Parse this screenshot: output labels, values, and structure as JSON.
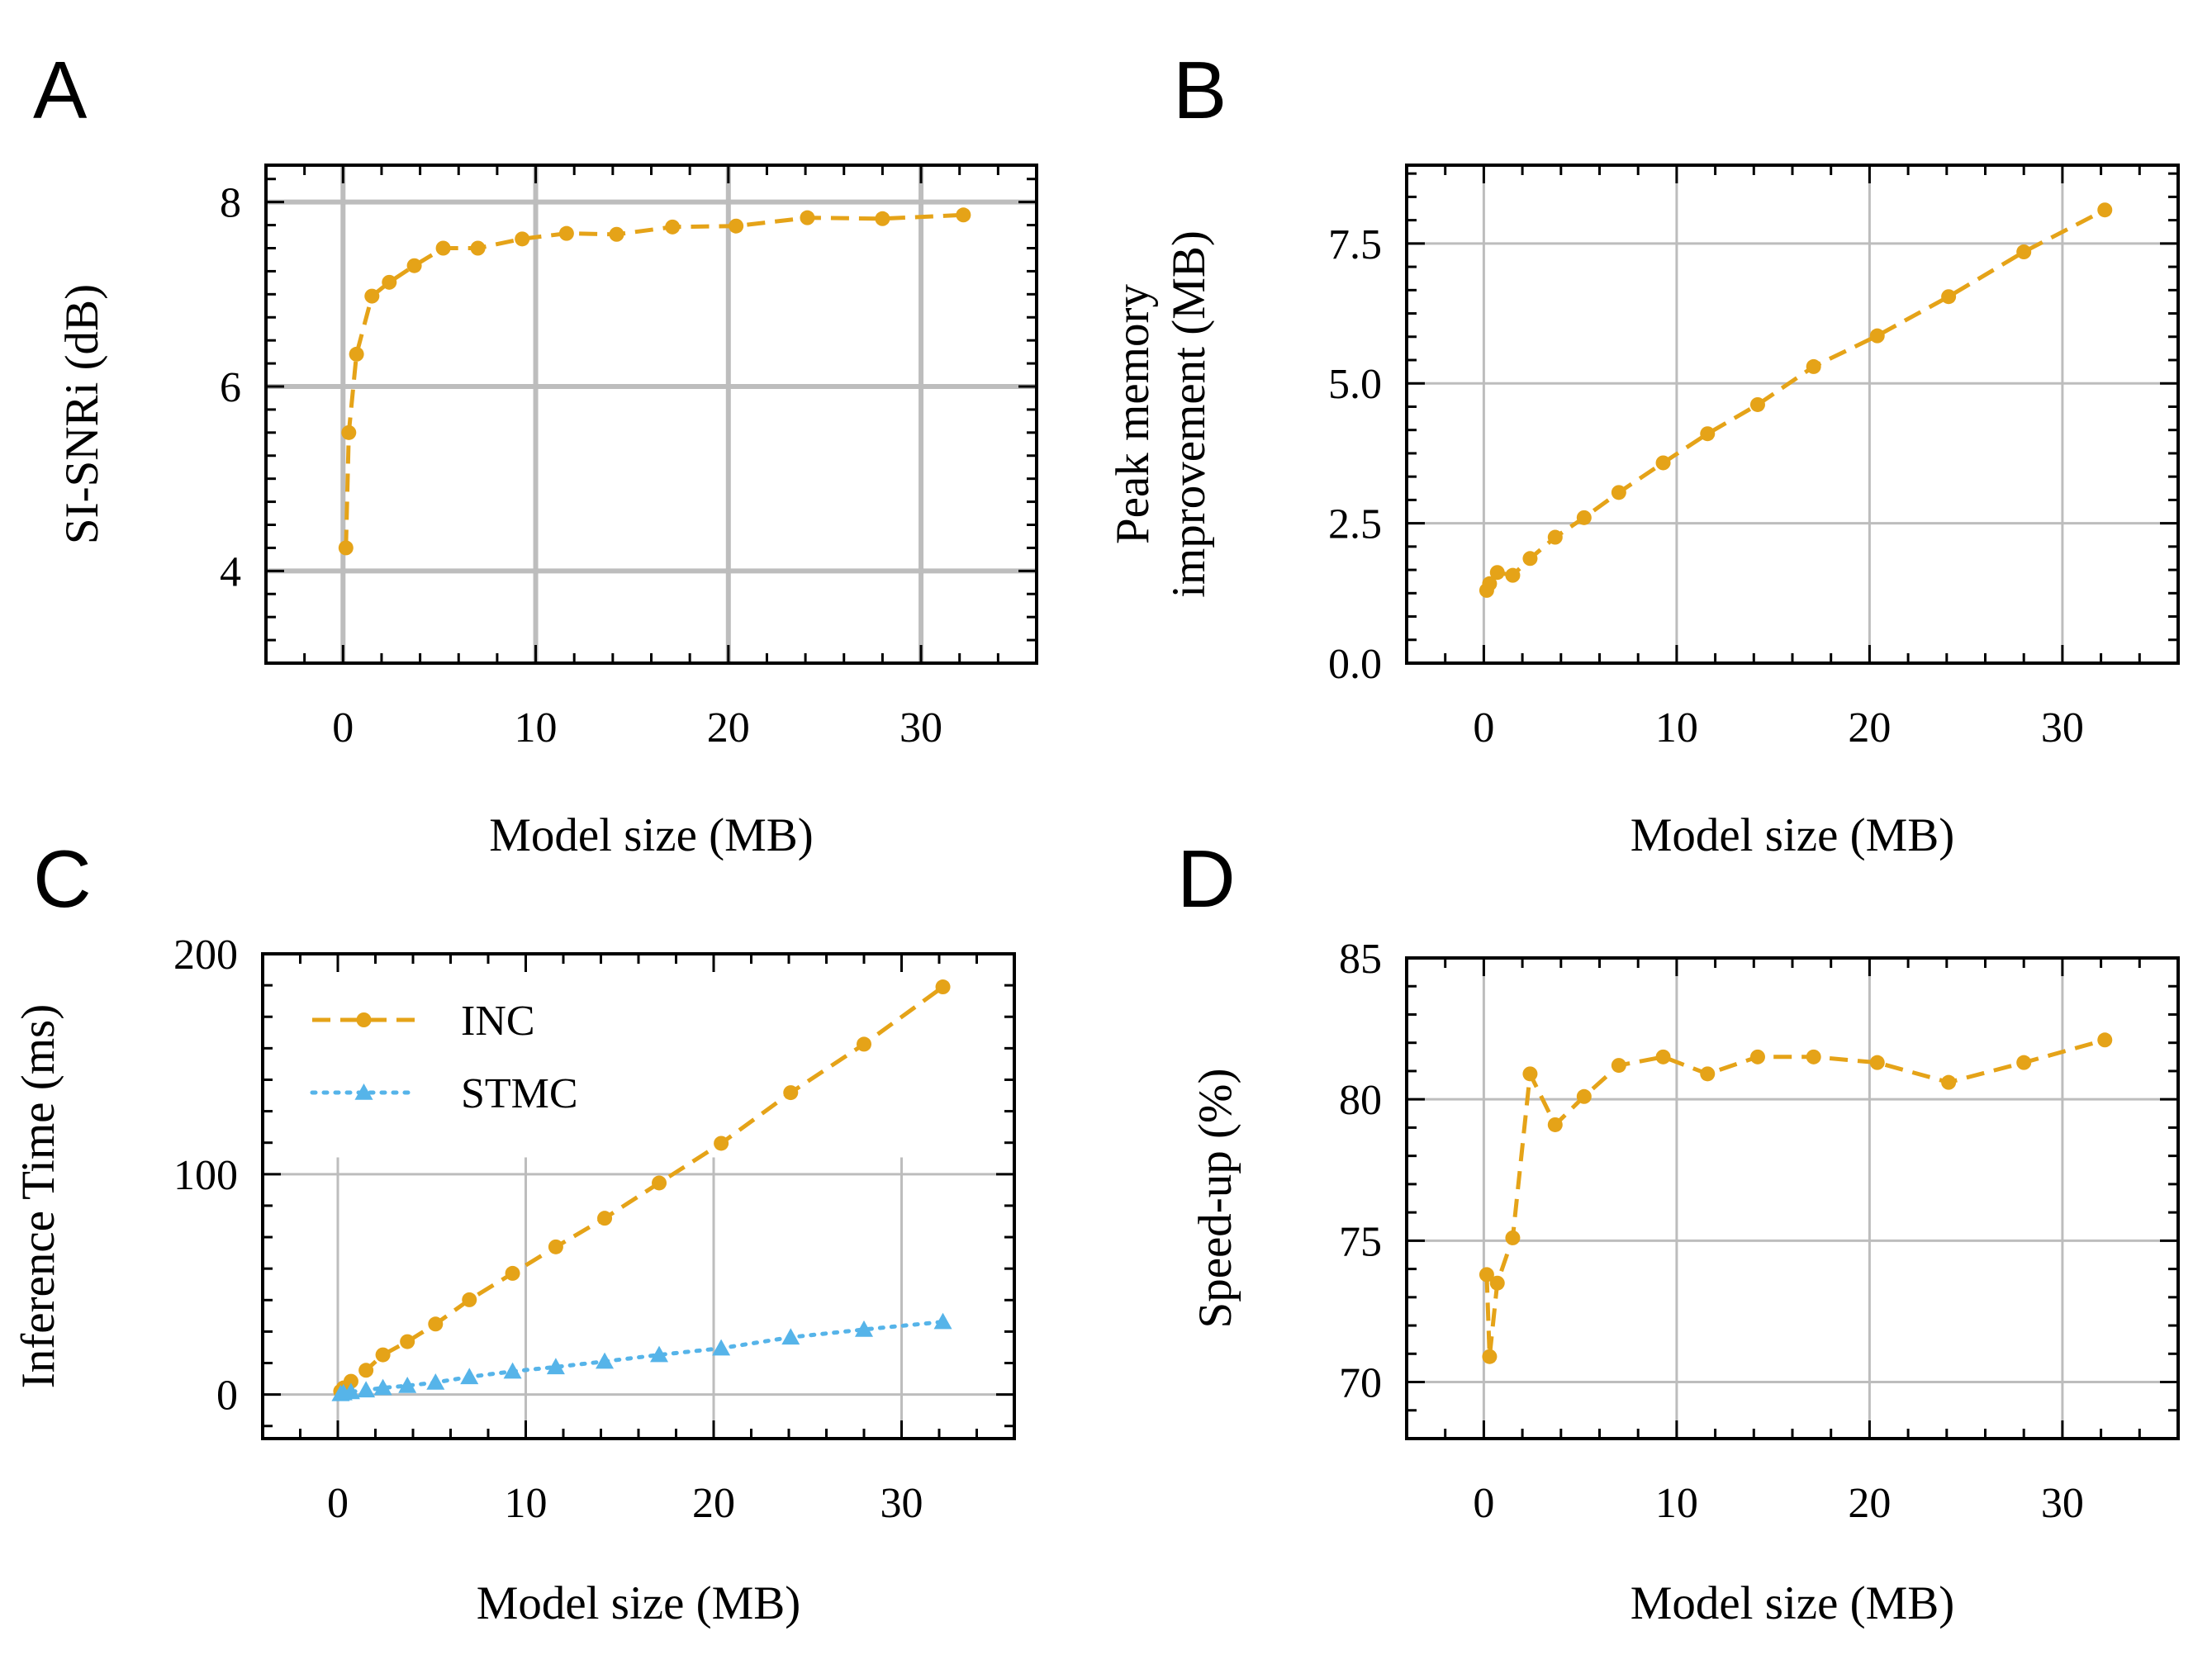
{
  "colors": {
    "inc": "#E5A318",
    "stmc": "#56B4E9",
    "grid": "#bdbdbd",
    "axis": "#000000"
  },
  "chart_data": [
    {
      "panel": "A",
      "type": "line",
      "xlabel": "Model size (MB)",
      "ylabel": "SI-SNRi (dB)",
      "xlim": [
        -4,
        36
      ],
      "ylim": [
        3.0,
        8.4
      ],
      "xticks": [
        0,
        10,
        20,
        30
      ],
      "yticks": [
        4,
        6,
        8
      ],
      "ytick_labels": [
        "4",
        "6",
        "8"
      ],
      "series": [
        {
          "name": "INC",
          "color": "#E5A318",
          "marker": "circle",
          "dash": "dashed",
          "x": [
            0.15,
            0.3,
            0.7,
            1.5,
            2.4,
            3.7,
            5.2,
            7.0,
            9.3,
            11.6,
            14.2,
            17.1,
            20.4,
            24.1,
            28.0,
            32.2
          ],
          "y": [
            4.25,
            5.5,
            6.35,
            6.98,
            7.13,
            7.31,
            7.5,
            7.5,
            7.6,
            7.66,
            7.65,
            7.73,
            7.74,
            7.83,
            7.82,
            7.86
          ]
        }
      ]
    },
    {
      "panel": "B",
      "type": "line",
      "xlabel": "Model size (MB)",
      "ylabel_lines": [
        "Peak memory",
        "improvement (MB)"
      ],
      "xlim": [
        -4,
        36
      ],
      "ylim": [
        0.0,
        8.9
      ],
      "xticks": [
        0,
        10,
        20,
        30
      ],
      "yticks": [
        0.0,
        2.5,
        5.0,
        7.5
      ],
      "ytick_labels": [
        "0.0",
        "2.5",
        "5.0",
        "7.5"
      ],
      "series": [
        {
          "name": "INC",
          "color": "#E5A318",
          "marker": "circle",
          "dash": "dashed",
          "x": [
            0.15,
            0.3,
            0.7,
            1.5,
            2.4,
            3.7,
            5.2,
            7.0,
            9.3,
            11.6,
            14.2,
            17.1,
            20.4,
            24.1,
            28.0,
            32.2
          ],
          "y": [
            1.3,
            1.42,
            1.62,
            1.57,
            1.87,
            2.25,
            2.6,
            3.05,
            3.58,
            4.1,
            4.62,
            5.3,
            5.85,
            6.55,
            7.35,
            8.1
          ]
        }
      ]
    },
    {
      "panel": "C",
      "type": "line",
      "xlabel": "Model size (MB)",
      "ylabel": "Inference Time (ms)",
      "xlim": [
        -4,
        36
      ],
      "ylim": [
        -20,
        200
      ],
      "xticks": [
        0,
        10,
        20,
        30
      ],
      "yticks": [
        0,
        100,
        200
      ],
      "ytick_labels": [
        "0",
        "100",
        "200"
      ],
      "legend": [
        "INC",
        "STMC"
      ],
      "series": [
        {
          "name": "INC",
          "color": "#E5A318",
          "marker": "circle",
          "dash": "dashed",
          "x": [
            0.15,
            0.3,
            0.7,
            1.5,
            2.4,
            3.7,
            5.2,
            7.0,
            9.3,
            11.6,
            14.2,
            17.1,
            20.4,
            24.1,
            28.0,
            32.2
          ],
          "y": [
            1.5,
            3,
            6,
            11,
            18,
            24,
            32,
            43,
            55,
            67,
            80,
            96,
            114,
            137,
            159,
            185
          ]
        },
        {
          "name": "STMC",
          "color": "#56B4E9",
          "marker": "triangle",
          "dash": "dotted",
          "x": [
            0.15,
            0.3,
            0.7,
            1.5,
            2.4,
            3.7,
            5.2,
            7.0,
            9.3,
            11.6,
            14.2,
            17.1,
            20.4,
            24.1,
            28.0,
            32.2
          ],
          "y": [
            0.3,
            0.7,
            1.2,
            2,
            3,
            4,
            5.5,
            8,
            10.5,
            12.5,
            15,
            18,
            21,
            26,
            29.5,
            33
          ]
        }
      ]
    },
    {
      "panel": "D",
      "type": "line",
      "xlabel": "Model size (MB)",
      "ylabel": "Speed-up (%)",
      "xlim": [
        -4,
        36
      ],
      "ylim": [
        68,
        85
      ],
      "xticks": [
        0,
        10,
        20,
        30
      ],
      "yticks": [
        70,
        75,
        80,
        85
      ],
      "ytick_labels": [
        "70",
        "75",
        "80",
        "85"
      ],
      "series": [
        {
          "name": "INC",
          "color": "#E5A318",
          "marker": "circle",
          "dash": "dashed",
          "x": [
            0.15,
            0.3,
            0.7,
            1.5,
            2.4,
            3.7,
            5.2,
            7.0,
            9.3,
            11.6,
            14.2,
            17.1,
            20.4,
            24.1,
            28.0,
            32.2
          ],
          "y": [
            73.8,
            70.9,
            73.5,
            75.1,
            80.9,
            79.1,
            80.1,
            81.2,
            81.5,
            80.9,
            81.5,
            81.5,
            81.3,
            80.6,
            81.3,
            82.1
          ]
        }
      ]
    }
  ]
}
